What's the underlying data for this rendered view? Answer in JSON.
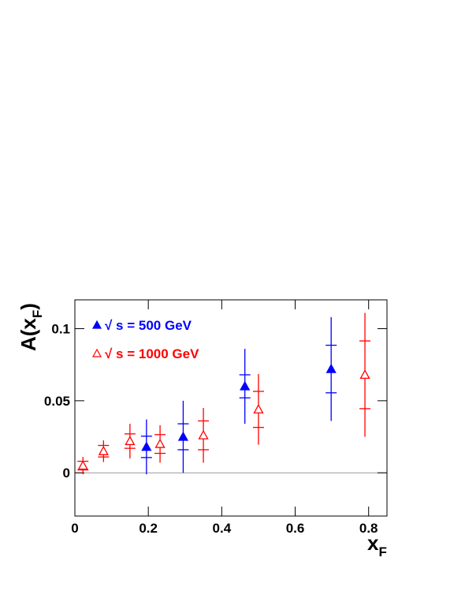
{
  "chart_data": {
    "type": "errorbar",
    "x_label": {
      "main": "x",
      "sub": "F"
    },
    "y_label": {
      "main": "A(x",
      "sub": "F",
      "close": ")"
    },
    "xlim": [
      0,
      0.85
    ],
    "ylim": [
      -0.03,
      0.12
    ],
    "xticks": [
      0,
      0.2,
      0.4,
      0.6,
      0.8
    ],
    "yticks": [
      0,
      0.05,
      {
        "value": 0.1,
        "label": "0.1"
      }
    ],
    "reference_line": 0,
    "series": [
      {
        "name": "√ s = 500 GeV",
        "color": "#0000ff",
        "marker": "filled-triangle",
        "x": [
          0.195,
          0.295,
          0.463,
          0.698
        ],
        "values": [
          0.018,
          0.025,
          0.06,
          0.072
        ],
        "errors": [
          0.019,
          0.025,
          0.026,
          0.036
        ],
        "stat_errors": [
          0.0074,
          0.009,
          0.008,
          0.0165
        ]
      },
      {
        "name": "√ s = 1000 GeV",
        "color": "#ff0000",
        "marker": "open-triangle",
        "x": [
          0.022,
          0.078,
          0.15,
          0.232,
          0.35,
          0.5,
          0.79
        ],
        "values": [
          0.005,
          0.015,
          0.022,
          0.02,
          0.026,
          0.044,
          0.068
        ],
        "errors": [
          0.006,
          0.0075,
          0.012,
          0.013,
          0.019,
          0.0245,
          0.043
        ],
        "stat_errors": [
          0.003,
          0.004,
          0.005,
          0.0065,
          0.01,
          0.0125,
          0.0235
        ]
      }
    ]
  }
}
